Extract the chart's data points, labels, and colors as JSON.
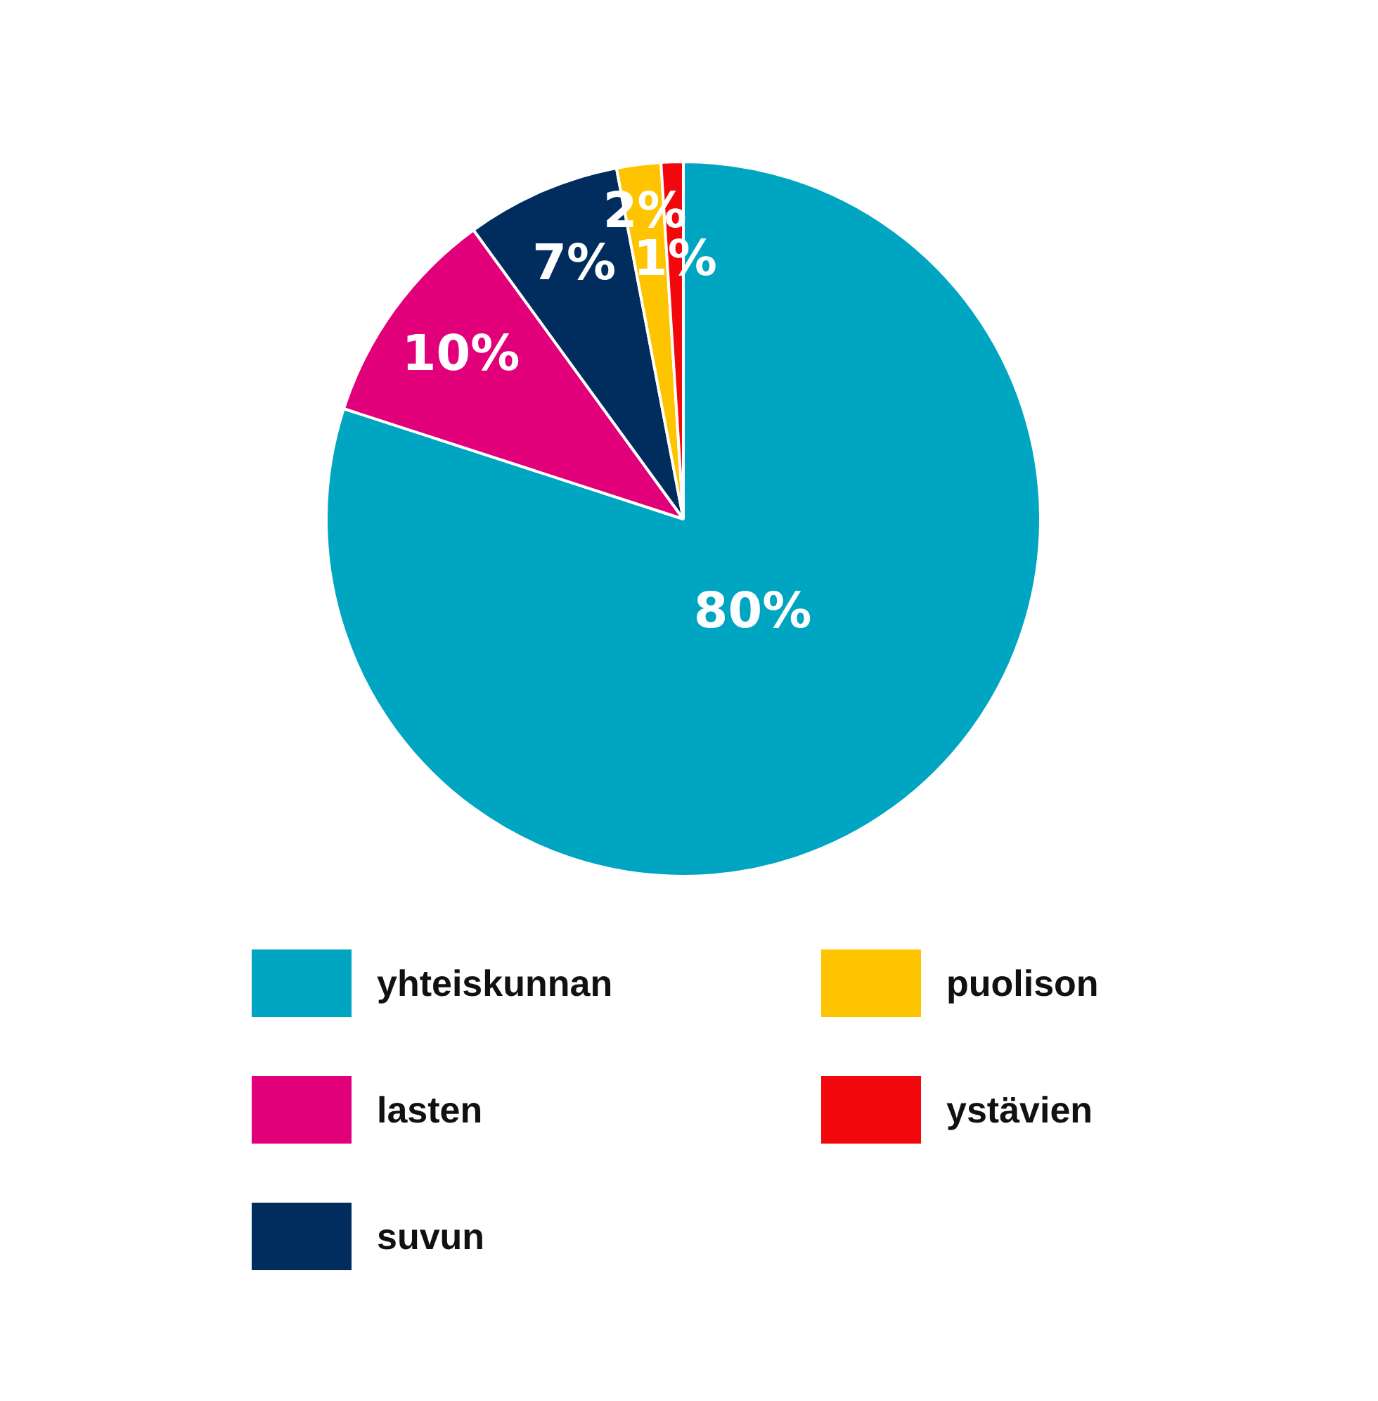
{
  "chart_data": {
    "type": "pie",
    "categories": [
      "yhteiskunnan",
      "lasten",
      "suvun",
      "puolison",
      "ystävien"
    ],
    "values": [
      80,
      10,
      7,
      2,
      1
    ],
    "colors": [
      "#00a5c2",
      "#e2007a",
      "#002d5d",
      "#ffc400",
      "#f2080c"
    ],
    "value_labels": [
      "80%",
      "10%",
      "7%",
      "2%",
      "1%"
    ],
    "legend": "bottom"
  }
}
